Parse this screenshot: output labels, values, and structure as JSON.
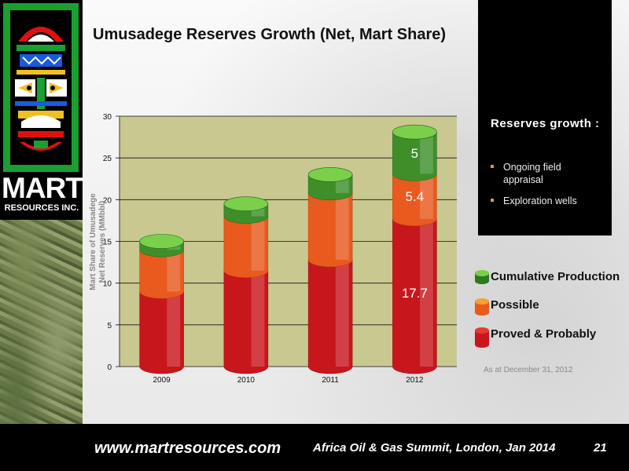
{
  "title": "Umusadege Reserves Growth (Net, Mart Share)",
  "logo": {
    "word": "MART",
    "subtitle": "RESOURCES INC."
  },
  "info_box": {
    "heading": "Reserves growth :",
    "bullets": [
      "Ongoing field appraisal",
      "Exploration wells"
    ]
  },
  "legend": {
    "cumulative": "Cumulative Production",
    "possible": "Possible",
    "proved": "Proved & Probably"
  },
  "footnote": "As at December 31, 2012",
  "footer": {
    "url": "www.martresources.com",
    "event": "Africa Oil & Gas Summit, London, Jan 2014",
    "page": "21"
  },
  "colors": {
    "proved": "#c8161d",
    "possible": "#e85a1e",
    "cumulative": "#3e8f2a",
    "plot_bg": "#c8c890",
    "accent_green": "#18a030"
  },
  "chart_data": {
    "type": "bar",
    "stacked": true,
    "categories": [
      "2009",
      "2010",
      "2011",
      "2012"
    ],
    "series": [
      {
        "name": "Proved & Probably",
        "values": [
          9.0,
          11.5,
          12.8,
          17.7
        ]
      },
      {
        "name": "Possible",
        "values": [
          5.0,
          6.5,
          8.0,
          5.4
        ]
      },
      {
        "name": "Cumulative Production",
        "values": [
          1.0,
          1.5,
          2.2,
          5.0
        ]
      }
    ],
    "data_labels": {
      "2012": [
        "17.7",
        "5.4",
        "5"
      ]
    },
    "ylabel": "Mart Share of Umusadege Net Reserves (MMbbl)",
    "ylim": [
      0,
      30
    ],
    "yticks": [
      "0",
      "5",
      "10",
      "15",
      "20",
      "25",
      "30"
    ],
    "grid": true
  }
}
